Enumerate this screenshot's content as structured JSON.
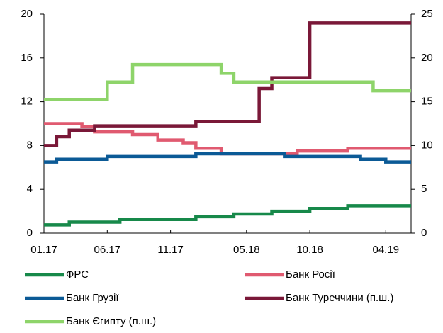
{
  "chart_data": {
    "type": "line",
    "step": true,
    "categories": [
      "01.17",
      null,
      null,
      null,
      null,
      "06.17",
      null,
      null,
      null,
      null,
      "11.17",
      null,
      null,
      null,
      null,
      null,
      "05.18",
      null,
      null,
      null,
      null,
      "10.18",
      null,
      null,
      null,
      null,
      null,
      "04.19",
      null
    ],
    "ylim": [
      0,
      20
    ],
    "yticks": [
      0,
      4,
      8,
      12,
      16,
      20
    ],
    "y2lim": [
      0,
      25
    ],
    "y2ticks": [
      0,
      5,
      10,
      15,
      20,
      25
    ],
    "series": [
      {
        "name": "ФРС",
        "color": "#17894a",
        "values": [
          0.75,
          0.75,
          1.0,
          1.0,
          1.0,
          1.0,
          1.25,
          1.25,
          1.25,
          1.25,
          1.25,
          1.25,
          1.5,
          1.5,
          1.5,
          1.75,
          1.75,
          1.75,
          2.0,
          2.0,
          2.0,
          2.25,
          2.25,
          2.25,
          2.5,
          2.5,
          2.5,
          2.5,
          2.5
        ]
      },
      {
        "name": "Банк Росії",
        "color": "#e05a70",
        "values": [
          10,
          10,
          10,
          9.75,
          9.25,
          9.25,
          9.25,
          9.0,
          9.0,
          8.5,
          8.5,
          8.25,
          7.75,
          7.75,
          7.25,
          7.25,
          7.25,
          7.25,
          7.25,
          7.25,
          7.5,
          7.5,
          7.5,
          7.5,
          7.75,
          7.75,
          7.75,
          7.75,
          7.75
        ]
      },
      {
        "name": "Банк Грузії",
        "color": "#0b5a96",
        "values": [
          6.5,
          6.75,
          6.75,
          6.75,
          6.75,
          7.0,
          7.0,
          7.0,
          7.0,
          7.0,
          7.0,
          7.0,
          7.25,
          7.25,
          7.25,
          7.25,
          7.25,
          7.25,
          7.25,
          7.0,
          7.0,
          7.0,
          7.0,
          7.0,
          7.0,
          6.75,
          6.75,
          6.5,
          6.5
        ]
      },
      {
        "name": "Банк Туреччини (п.ш.)",
        "color": "#7a1838",
        "axis": "y2",
        "values": [
          10,
          11,
          11.75,
          11.75,
          12.25,
          12.25,
          12.25,
          12.25,
          12.25,
          12.25,
          12.25,
          12.25,
          12.75,
          12.75,
          12.75,
          12.75,
          12.75,
          16.5,
          17.75,
          17.75,
          17.75,
          24,
          24,
          24,
          24,
          24,
          24,
          24,
          24
        ]
      },
      {
        "name": "Банк Єгипту (п.ш.)",
        "color": "#8ed46a",
        "axis": "y2",
        "values": [
          15.25,
          15.25,
          15.25,
          15.25,
          15.25,
          17.25,
          17.25,
          19.25,
          19.25,
          19.25,
          19.25,
          19.25,
          19.25,
          19.25,
          18.25,
          17.25,
          17.25,
          17.25,
          17.25,
          17.25,
          17.25,
          17.25,
          17.25,
          17.25,
          17.25,
          17.25,
          16.25,
          16.25,
          16.25
        ]
      }
    ]
  }
}
